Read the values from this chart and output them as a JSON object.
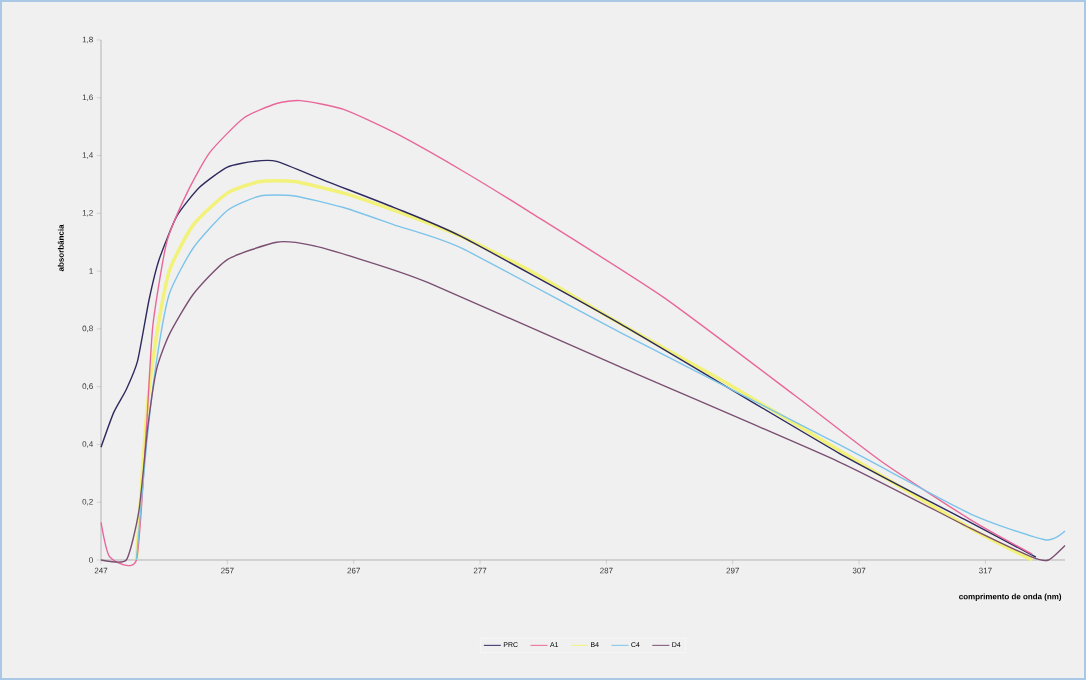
{
  "chart_data": {
    "type": "line",
    "xlabel": "comprimento de onda (nm)",
    "ylabel": "absorbância",
    "xlim": [
      247,
      323.3
    ],
    "xticks": [
      247,
      257,
      267,
      277,
      287,
      297,
      307,
      317
    ],
    "ylim": [
      0,
      1.8
    ],
    "yticks": [
      0,
      {
        "value": 0.2,
        "label": "0,2"
      },
      {
        "value": 0.4,
        "label": "0,4"
      },
      {
        "value": 0.6,
        "label": "0,6"
      },
      {
        "value": 0.8,
        "label": "0,8"
      },
      1,
      {
        "value": 1.2,
        "label": "1,2"
      },
      {
        "value": 1.4,
        "label": "1,4"
      },
      {
        "value": 1.6,
        "label": "1,6"
      },
      {
        "value": 1.8,
        "label": "1,8"
      }
    ],
    "grid": false,
    "legend": "bottom",
    "marker": "none",
    "line_style": "solid",
    "series": [
      {
        "name": "PRC",
        "color": "#2e2a5e",
        "x": [
          247,
          248,
          249,
          249.9,
          250.8,
          251.6,
          253,
          254.8,
          257,
          259.1,
          260.9,
          264.9,
          270.2,
          275.5,
          288,
          305.4,
          315.8,
          321
        ],
        "values": [
          0.39,
          0.51,
          0.59,
          0.69,
          0.9,
          1.04,
          1.19,
          1.29,
          1.36,
          1.38,
          1.38,
          1.31,
          1.22,
          1.12,
          0.82,
          0.37,
          0.13,
          0.01
        ]
      },
      {
        "name": "A1",
        "color": "#e8679a",
        "x": [
          247,
          247.7,
          249.8,
          250.6,
          251.1,
          252.2,
          253.8,
          255.6,
          258.3,
          260.9,
          262.8,
          266.2,
          270.2,
          275.5,
          281.1,
          291.5,
          301.9,
          308.8,
          315.8,
          320.7
        ],
        "values": [
          0.13,
          0.01,
          0,
          0.46,
          0.81,
          1.1,
          1.27,
          1.41,
          1.53,
          1.58,
          1.59,
          1.56,
          1.48,
          1.35,
          1.2,
          0.91,
          0.57,
          0.34,
          0.14,
          0.02
        ]
      },
      {
        "name": "B4",
        "color": "#f2f27a",
        "x": [
          249.8,
          250.6,
          251.4,
          252.4,
          254.3,
          257,
          259.6,
          262.3,
          266.2,
          270.2,
          275.5,
          281,
          288,
          297,
          305.4,
          315.8,
          320.7
        ],
        "values": [
          0,
          0.5,
          0.78,
          1,
          1.16,
          1.27,
          1.31,
          1.31,
          1.27,
          1.21,
          1.12,
          1,
          0.82,
          0.6,
          0.38,
          0.11,
          0
        ]
      },
      {
        "name": "C4",
        "color": "#7cc4ea",
        "x": [
          249.8,
          250.6,
          251.4,
          252.4,
          254.3,
          257,
          259.6,
          262.3,
          266.2,
          270.2,
          275.5,
          288,
          305.4,
          315.8,
          321.7,
          323.3
        ],
        "values": [
          0,
          0.4,
          0.69,
          0.92,
          1.08,
          1.21,
          1.26,
          1.26,
          1.22,
          1.16,
          1.08,
          0.79,
          0.4,
          0.16,
          0.07,
          0.1
        ]
      },
      {
        "name": "D4",
        "color": "#7a4f72",
        "x": [
          247,
          249,
          250,
          250.7,
          251.4,
          252.4,
          254.3,
          257,
          260.9,
          263.6,
          267.6,
          272.9,
          288,
          305.4,
          315.8,
          320.7,
          322,
          323.3
        ],
        "values": [
          0,
          0,
          0.17,
          0.46,
          0.66,
          0.78,
          0.92,
          1.04,
          1.1,
          1.09,
          1.04,
          0.96,
          0.67,
          0.34,
          0.11,
          0.01,
          0,
          0.05
        ]
      }
    ]
  }
}
